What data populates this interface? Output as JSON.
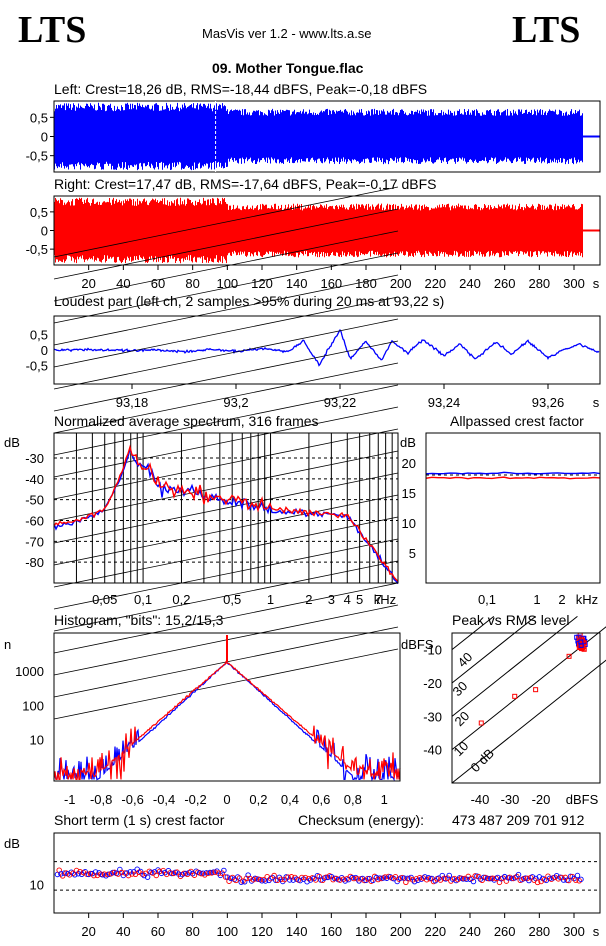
{
  "header": {
    "logo_left": "LTS",
    "logo_right": "LTS",
    "app": "MasVis ver 1.2 - www.lts.a.se",
    "file": "09. Mother Tongue.flac"
  },
  "colors": {
    "left": "#0000ff",
    "right": "#ff0000",
    "grid": "#000000"
  },
  "chart_data": [
    {
      "type": "area",
      "title": "Left: Crest=18,26 dB, RMS=-18,44 dBFS, Peak=-0,18 dBFS",
      "series": [
        {
          "name": "left",
          "color": "#0000ff"
        }
      ],
      "ylim": [
        -1,
        1
      ],
      "yticks": [
        "0,5",
        "0",
        "-0,5"
      ],
      "xlim": [
        0,
        315
      ],
      "marker_x": 93.22,
      "end_x": 305
    },
    {
      "type": "area",
      "title": "Right: Crest=17,47 dB, RMS=-17,64 dBFS, Peak=-0,17 dBFS",
      "series": [
        {
          "name": "right",
          "color": "#ff0000"
        }
      ],
      "ylim": [
        -1,
        1
      ],
      "yticks": [
        "0,5",
        "0",
        "-0,5"
      ],
      "xlim": [
        0,
        315
      ],
      "end_x": 305,
      "xticks": [
        "20",
        "40",
        "60",
        "80",
        "100",
        "120",
        "140",
        "160",
        "180",
        "200",
        "220",
        "240",
        "260",
        "280",
        "300"
      ],
      "xunit": "s"
    },
    {
      "type": "line",
      "title": "Loudest part (left  ch, 2 samples >95% during 20 ms at 93,22 s)",
      "ylim": [
        -1,
        1
      ],
      "yticks": [
        "0,5",
        "0",
        "-0,5"
      ],
      "xlim": [
        93.165,
        93.27
      ],
      "xticks": [
        "93,18",
        "93,2",
        "93,22",
        "93,24",
        "93,26"
      ],
      "xunit": "s",
      "series": [
        {
          "name": "left",
          "color": "#0000ff",
          "x": [
            93.165,
            93.17,
            93.175,
            93.18,
            93.185,
            93.19,
            93.195,
            93.2,
            93.205,
            93.21,
            93.213,
            93.216,
            93.218,
            93.22,
            93.222,
            93.225,
            93.228,
            93.23,
            93.233,
            93.236,
            93.24,
            93.243,
            93.246,
            93.25,
            93.253,
            93.256,
            93.26,
            93.263,
            93.266,
            93.27
          ],
          "y": [
            0.0,
            0.02,
            0.0,
            -0.03,
            0.0,
            -0.05,
            0.02,
            -0.05,
            0.05,
            -0.05,
            0.3,
            -0.5,
            0.1,
            0.65,
            -0.3,
            0.3,
            -0.35,
            0.3,
            -0.1,
            0.35,
            -0.2,
            0.2,
            -0.3,
            0.25,
            -0.15,
            0.3,
            -0.25,
            0.0,
            0.2,
            -0.1
          ]
        }
      ]
    },
    {
      "type": "line",
      "title": "Normalized average spectrum, 316 frames",
      "ylabel": "dB",
      "yticks": [
        "-30",
        "-40",
        "-50",
        "-60",
        "-70",
        "-80"
      ],
      "ylim": [
        -90,
        -18
      ],
      "xticks": [
        "0,05",
        "0,1",
        "0,2",
        "0,5",
        "1",
        "2",
        "3",
        "4",
        "5",
        "7"
      ],
      "xunit": "kHz",
      "series": [
        {
          "name": "left",
          "color": "#0000ff"
        },
        {
          "name": "right",
          "color": "#ff0000"
        }
      ]
    },
    {
      "type": "line",
      "title": "Allpassed crest factor",
      "ylabel": "dB",
      "yticks": [
        "20",
        "15",
        "10",
        "5"
      ],
      "ylim": [
        0,
        25
      ],
      "xticks": [
        "0,1",
        "1",
        "2"
      ],
      "xunit": "kHz",
      "series": [
        {
          "name": "left",
          "color": "#0000ff",
          "value": 18.3
        },
        {
          "name": "right",
          "color": "#ff0000",
          "value": 17.5
        }
      ]
    },
    {
      "type": "line",
      "title": "Histogram, \"bits\": 15,2/15,3",
      "ylabel": "n",
      "yticks": [
        "1000",
        "100",
        "10"
      ],
      "xticks": [
        "-1",
        "-0,8",
        "-0,6",
        "-0,4",
        "-0,2",
        "0",
        "0,2",
        "0,4",
        "0,6",
        "0,8",
        "1"
      ],
      "xlim": [
        -1.1,
        1.1
      ],
      "series": [
        {
          "name": "left",
          "color": "#0000ff"
        },
        {
          "name": "right",
          "color": "#ff0000"
        }
      ]
    },
    {
      "type": "scatter",
      "title": "Peak vs RMS level",
      "ylabel": "dBFS",
      "xunit": "dBFS",
      "yticks": [
        "-10",
        "-20",
        "-30",
        "-40"
      ],
      "xticks": [
        "-40",
        "-30",
        "-20"
      ],
      "diag_labels": [
        "40",
        "30",
        "20",
        "10",
        "0 dB"
      ]
    },
    {
      "type": "scatter",
      "title": "Short term (1 s) crest factor",
      "checksum_label": "Checksum (energy):",
      "checksum": "473 487 209 701 912",
      "ylabel": "dB",
      "yticks": [
        "10"
      ],
      "xticks": [
        "20",
        "40",
        "60",
        "80",
        "100",
        "120",
        "140",
        "160",
        "180",
        "200",
        "220",
        "240",
        "260",
        "280",
        "300"
      ],
      "xunit": "s"
    }
  ]
}
